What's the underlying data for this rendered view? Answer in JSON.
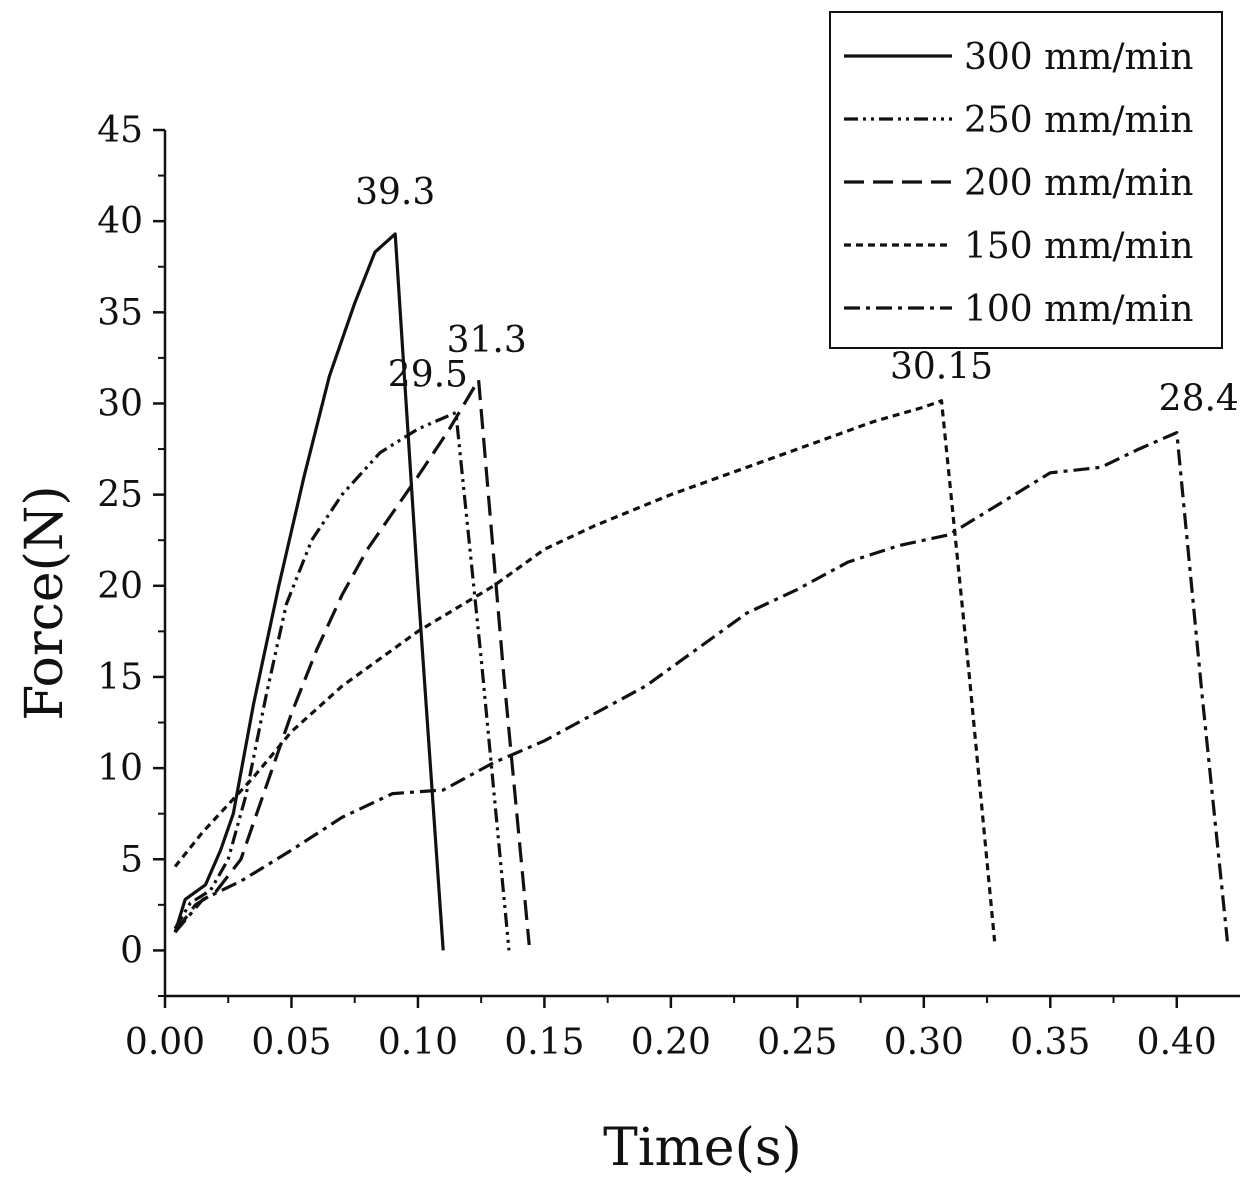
{
  "chart_data": {
    "type": "line",
    "title": "",
    "xlabel": "Time(s)",
    "ylabel": "Force(N)",
    "xlim": [
      0,
      0.425
    ],
    "ylim": [
      -2.5,
      45
    ],
    "xticks": [
      "0.00",
      "0.05",
      "0.10",
      "0.15",
      "0.20",
      "0.25",
      "0.30",
      "0.35",
      "0.40"
    ],
    "yticks": [
      "0",
      "5",
      "10",
      "15",
      "20",
      "25",
      "30",
      "35",
      "40",
      "45"
    ],
    "grid": false,
    "legend_position": "top-right",
    "series": [
      {
        "name": "300 mm/min",
        "dash": "solid",
        "peak_label": "39.3",
        "points": [
          [
            0.004,
            1.0
          ],
          [
            0.008,
            2.8
          ],
          [
            0.016,
            3.6
          ],
          [
            0.022,
            5.5
          ],
          [
            0.027,
            7.5
          ],
          [
            0.035,
            13.5
          ],
          [
            0.045,
            20.0
          ],
          [
            0.055,
            26.0
          ],
          [
            0.065,
            31.5
          ],
          [
            0.075,
            35.5
          ],
          [
            0.083,
            38.3
          ],
          [
            0.091,
            39.3
          ],
          [
            0.1,
            20.0
          ],
          [
            0.11,
            0.0
          ]
        ]
      },
      {
        "name": "250 mm/min",
        "dash": "dash-dot-dot",
        "peak_label": "29.5",
        "points": [
          [
            0.004,
            1.2
          ],
          [
            0.01,
            2.6
          ],
          [
            0.018,
            3.3
          ],
          [
            0.025,
            5.0
          ],
          [
            0.032,
            8.5
          ],
          [
            0.04,
            14.0
          ],
          [
            0.048,
            19.0
          ],
          [
            0.058,
            22.5
          ],
          [
            0.07,
            25.0
          ],
          [
            0.085,
            27.3
          ],
          [
            0.1,
            28.6
          ],
          [
            0.115,
            29.5
          ],
          [
            0.125,
            16.0
          ],
          [
            0.136,
            0.0
          ]
        ]
      },
      {
        "name": "200 mm/min",
        "dash": "long-dash",
        "peak_label": "31.3",
        "points": [
          [
            0.004,
            1.0
          ],
          [
            0.012,
            2.5
          ],
          [
            0.02,
            3.2
          ],
          [
            0.03,
            5.0
          ],
          [
            0.04,
            9.0
          ],
          [
            0.05,
            13.0
          ],
          [
            0.06,
            16.5
          ],
          [
            0.07,
            19.5
          ],
          [
            0.08,
            22.0
          ],
          [
            0.09,
            24.0
          ],
          [
            0.1,
            26.0
          ],
          [
            0.112,
            28.5
          ],
          [
            0.124,
            31.3
          ],
          [
            0.134,
            15.0
          ],
          [
            0.144,
            0.3
          ]
        ]
      },
      {
        "name": "150 mm/min",
        "dash": "short-dash",
        "peak_label": "30.15",
        "points": [
          [
            0.004,
            4.6
          ],
          [
            0.015,
            6.5
          ],
          [
            0.025,
            8.0
          ],
          [
            0.035,
            9.5
          ],
          [
            0.05,
            12.0
          ],
          [
            0.07,
            14.5
          ],
          [
            0.1,
            17.5
          ],
          [
            0.13,
            20.0
          ],
          [
            0.15,
            22.0
          ],
          [
            0.17,
            23.3
          ],
          [
            0.2,
            25.0
          ],
          [
            0.22,
            26.0
          ],
          [
            0.25,
            27.5
          ],
          [
            0.28,
            29.0
          ],
          [
            0.3,
            29.8
          ],
          [
            0.307,
            30.15
          ],
          [
            0.318,
            15.0
          ],
          [
            0.328,
            0.5
          ]
        ]
      },
      {
        "name": "100 mm/min",
        "dash": "dash-dot",
        "peak_label": "28.4",
        "points": [
          [
            0.004,
            1.0
          ],
          [
            0.015,
            2.8
          ],
          [
            0.03,
            3.8
          ],
          [
            0.05,
            5.5
          ],
          [
            0.07,
            7.3
          ],
          [
            0.09,
            8.6
          ],
          [
            0.11,
            8.8
          ],
          [
            0.13,
            10.3
          ],
          [
            0.15,
            11.5
          ],
          [
            0.17,
            13.0
          ],
          [
            0.19,
            14.5
          ],
          [
            0.21,
            16.5
          ],
          [
            0.23,
            18.5
          ],
          [
            0.25,
            19.8
          ],
          [
            0.27,
            21.3
          ],
          [
            0.29,
            22.2
          ],
          [
            0.31,
            22.8
          ],
          [
            0.33,
            24.5
          ],
          [
            0.35,
            26.2
          ],
          [
            0.37,
            26.5
          ],
          [
            0.385,
            27.5
          ],
          [
            0.4,
            28.4
          ],
          [
            0.41,
            14.0
          ],
          [
            0.42,
            0.5
          ]
        ]
      }
    ]
  }
}
